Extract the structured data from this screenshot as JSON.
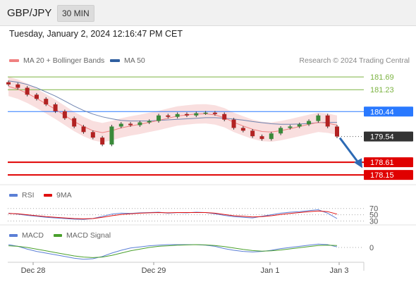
{
  "header": {
    "pair": "GBP/JPY",
    "timeframe": "30 MIN"
  },
  "timestamp": "Tuesday, January 2, 2024 12:16:47 PM CET",
  "legend_main": [
    {
      "label": "MA 20 + Bollinger Bands",
      "color": "#f08080"
    },
    {
      "label": "MA 50",
      "color": "#2f5fa0"
    }
  ],
  "legend_rsi": [
    {
      "label": "RSI",
      "color": "#5b7fd6"
    },
    {
      "label": "9MA",
      "color": "#e01010"
    }
  ],
  "legend_macd": [
    {
      "label": "MACD",
      "color": "#5b7fd6"
    },
    {
      "label": "MACD Signal",
      "color": "#4aa02c"
    }
  ],
  "credit": "Research © 2024 Trading Central",
  "chart_data": {
    "type": "line",
    "title": "",
    "ylim": [
      177.9,
      182.0
    ],
    "levels": [
      {
        "value": 181.69,
        "label": "181.69",
        "kind": "resistance",
        "color": "#7cb342"
      },
      {
        "value": 181.23,
        "label": "181.23",
        "kind": "resistance",
        "color": "#7cb342"
      },
      {
        "value": 180.44,
        "label": "180.44",
        "kind": "pivot",
        "color": "#2979ff"
      },
      {
        "value": 179.54,
        "label": "179.54",
        "kind": "last",
        "color": "#333333"
      },
      {
        "value": 178.61,
        "label": "178.61",
        "kind": "support",
        "color": "#e00000"
      },
      {
        "value": 178.15,
        "label": "178.15",
        "kind": "support",
        "color": "#e00000"
      }
    ],
    "x_ticks": [
      "Dec 28",
      "Dec 29",
      "Jan 1",
      "Jan 3"
    ],
    "price_series": [
      181.42,
      181.3,
      181.05,
      180.9,
      180.7,
      180.45,
      180.2,
      179.9,
      179.7,
      179.5,
      179.25,
      179.9,
      180.0,
      179.95,
      180.05,
      180.1,
      180.3,
      180.25,
      180.35,
      180.3,
      180.38,
      180.4,
      180.35,
      180.15,
      179.85,
      179.75,
      179.55,
      179.45,
      179.65,
      179.85,
      179.9,
      179.98,
      180.1,
      180.3,
      179.9,
      179.54
    ],
    "ma20": [
      181.35,
      181.25,
      181.1,
      180.92,
      180.72,
      180.52,
      180.3,
      180.08,
      179.9,
      179.75,
      179.68,
      179.75,
      179.85,
      179.92,
      179.98,
      180.05,
      180.12,
      180.2,
      180.28,
      180.32,
      180.35,
      180.36,
      180.32,
      180.22,
      180.05,
      179.92,
      179.8,
      179.72,
      179.7,
      179.75,
      179.82,
      179.9,
      179.98,
      180.05,
      180.02,
      179.95
    ],
    "ma50": [
      181.55,
      181.5,
      181.42,
      181.3,
      181.15,
      181.0,
      180.82,
      180.64,
      180.48,
      180.35,
      180.25,
      180.18,
      180.12,
      180.1,
      180.1,
      180.1,
      180.12,
      180.14,
      180.16,
      180.18,
      180.2,
      180.22,
      180.22,
      180.2,
      180.17,
      180.13,
      180.08,
      180.04,
      180.0,
      179.98,
      179.98,
      179.99,
      180.01,
      180.04,
      180.05,
      180.05
    ],
    "forecast": {
      "from": 179.54,
      "to": 178.45
    },
    "rsi": {
      "levels": [
        70,
        50,
        30
      ],
      "values": [
        55,
        52,
        48,
        45,
        42,
        40,
        38,
        36,
        35,
        38,
        45,
        52,
        55,
        54,
        56,
        57,
        58,
        55,
        57,
        56,
        58,
        57,
        53,
        48,
        44,
        42,
        40,
        45,
        50,
        55,
        58,
        60,
        63,
        66,
        55,
        38
      ],
      "ma9": [
        54,
        53,
        50,
        47,
        44,
        42,
        40,
        38,
        37,
        38,
        42,
        47,
        51,
        53,
        55,
        56,
        57,
        56,
        57,
        57,
        57,
        57,
        55,
        51,
        47,
        45,
        43,
        44,
        47,
        51,
        54,
        57,
        60,
        62,
        60,
        52
      ]
    },
    "macd": {
      "zero_label": "0",
      "macd": [
        0.05,
        0.02,
        -0.03,
        -0.07,
        -0.1,
        -0.13,
        -0.16,
        -0.19,
        -0.21,
        -0.2,
        -0.16,
        -0.1,
        -0.05,
        -0.01,
        0.01,
        0.03,
        0.04,
        0.05,
        0.05,
        0.05,
        0.05,
        0.04,
        0.02,
        -0.02,
        -0.05,
        -0.07,
        -0.08,
        -0.07,
        -0.05,
        -0.02,
        0.0,
        0.02,
        0.04,
        0.06,
        0.05,
        0.01
      ],
      "signal": [
        0.03,
        0.02,
        0.0,
        -0.03,
        -0.06,
        -0.09,
        -0.12,
        -0.15,
        -0.17,
        -0.18,
        -0.17,
        -0.14,
        -0.1,
        -0.06,
        -0.03,
        0.0,
        0.02,
        0.03,
        0.04,
        0.045,
        0.05,
        0.045,
        0.035,
        0.015,
        -0.01,
        -0.035,
        -0.055,
        -0.065,
        -0.06,
        -0.045,
        -0.025,
        -0.005,
        0.015,
        0.035,
        0.04,
        0.035
      ]
    }
  }
}
